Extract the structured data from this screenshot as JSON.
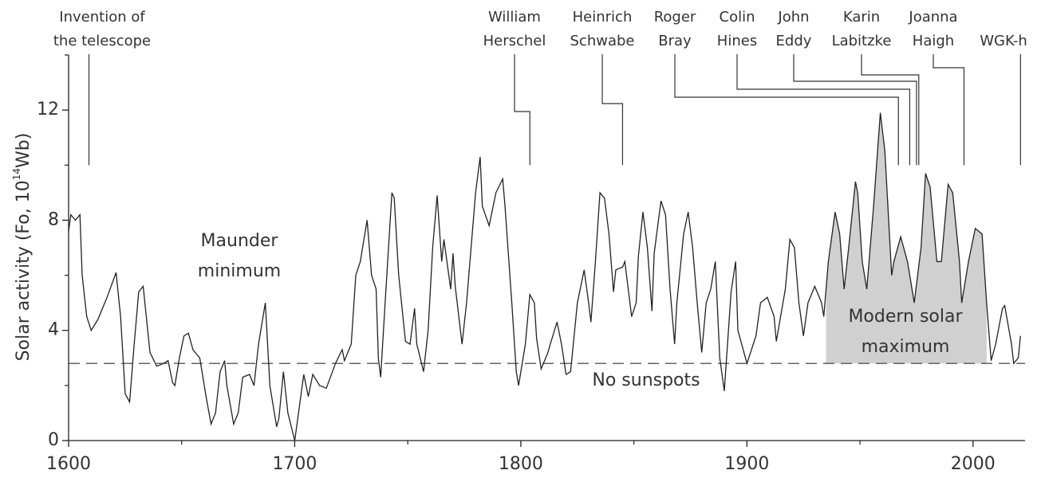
{
  "chart_data": {
    "type": "line",
    "color": "#222222",
    "ylabel": {
      "text": "Solar activity (Fo, 10",
      "sup": "14",
      "unit": "Wb)"
    },
    "xlim": [
      1600,
      2023
    ],
    "xticks": [
      1600,
      1700,
      1800,
      1900,
      2000
    ],
    "x_minor_ticks": [
      1650,
      1750,
      1850,
      1950
    ],
    "ylim": [
      0,
      14
    ],
    "yticks": [
      0,
      4,
      8,
      12
    ],
    "y_minor_ticks": [
      2,
      6,
      10,
      14
    ],
    "x": [
      1600,
      1601,
      1603,
      1605,
      1606,
      1608,
      1610,
      1613,
      1617,
      1621,
      1623,
      1625,
      1627,
      1629,
      1631,
      1633,
      1636,
      1639,
      1642,
      1644,
      1646,
      1647,
      1649,
      1651,
      1653,
      1655,
      1656,
      1658,
      1661,
      1663,
      1665,
      1667,
      1669,
      1670,
      1673,
      1675,
      1677,
      1680,
      1682,
      1684,
      1687,
      1689,
      1692,
      1693,
      1695,
      1697,
      1700,
      1704,
      1706,
      1708,
      1711,
      1714,
      1718,
      1721,
      1722,
      1725,
      1727,
      1729,
      1730,
      1732,
      1734,
      1736,
      1737,
      1738,
      1740,
      1743,
      1744,
      1746,
      1749,
      1751,
      1753,
      1754,
      1757,
      1759,
      1761,
      1763,
      1765,
      1766,
      1769,
      1770,
      1771,
      1774,
      1776,
      1780,
      1782,
      1783,
      1786,
      1789,
      1792,
      1793,
      1796,
      1798,
      1799,
      1802,
      1804,
      1806,
      1807,
      1809,
      1812,
      1813,
      1816,
      1818,
      1820,
      1822,
      1825,
      1828,
      1830,
      1831,
      1833,
      1835,
      1837,
      1839,
      1841,
      1842,
      1845,
      1846,
      1849,
      1851,
      1852,
      1854,
      1856,
      1858,
      1859,
      1862,
      1864,
      1866,
      1868,
      1869,
      1872,
      1874,
      1876,
      1878,
      1880,
      1882,
      1884,
      1886,
      1888,
      1890,
      1893,
      1895,
      1896,
      1900,
      1904,
      1906,
      1909,
      1912,
      1913,
      1917,
      1919,
      1921,
      1923,
      1925,
      1927,
      1930,
      1933,
      1934,
      1936,
      1939,
      1941,
      1943,
      1945,
      1948,
      1949,
      1951,
      1953,
      1956,
      1959,
      1961,
      1964,
      1965,
      1968,
      1971,
      1974,
      1977,
      1979,
      1981,
      1984,
      1986,
      1989,
      1991,
      1994,
      1995,
      1998,
      2001,
      2004,
      2006,
      2008,
      2010,
      2013,
      2014,
      2017,
      2018,
      2020,
      2021
    ],
    "values": [
      7.6,
      8.2,
      8.0,
      8.2,
      6.0,
      4.5,
      4.0,
      4.4,
      5.2,
      6.1,
      4.5,
      1.7,
      1.4,
      3.5,
      5.4,
      5.6,
      3.2,
      2.7,
      2.8,
      2.9,
      2.1,
      2.0,
      3.0,
      3.8,
      3.9,
      3.3,
      3.2,
      3.0,
      1.5,
      0.6,
      1.0,
      2.5,
      2.9,
      2.0,
      0.6,
      1.0,
      2.3,
      2.4,
      2.0,
      3.5,
      5.0,
      2.0,
      0.5,
      0.8,
      2.5,
      1.0,
      0.0,
      2.4,
      1.6,
      2.4,
      2.0,
      1.9,
      2.8,
      3.3,
      2.9,
      3.5,
      6.0,
      6.5,
      7.0,
      8.0,
      6.0,
      5.5,
      3.0,
      2.3,
      5.0,
      9.0,
      8.8,
      6.0,
      3.6,
      3.5,
      4.8,
      3.5,
      2.5,
      4.0,
      7.0,
      8.9,
      6.5,
      7.3,
      5.5,
      6.8,
      5.6,
      3.5,
      5.0,
      9.0,
      10.3,
      8.5,
      7.8,
      9.0,
      9.5,
      8.5,
      5.0,
      2.5,
      2.0,
      3.5,
      5.3,
      5.0,
      3.7,
      2.6,
      3.2,
      3.5,
      4.3,
      3.5,
      2.4,
      2.5,
      5.0,
      6.2,
      5.0,
      4.3,
      6.5,
      9.0,
      8.8,
      7.5,
      5.4,
      6.2,
      6.3,
      6.5,
      4.5,
      5.0,
      6.7,
      8.3,
      7.0,
      4.7,
      6.8,
      8.7,
      8.2,
      5.5,
      3.5,
      5.0,
      7.5,
      8.3,
      7.0,
      5.0,
      3.2,
      5.0,
      5.5,
      6.5,
      3.0,
      1.8,
      5.4,
      6.5,
      4.0,
      2.8,
      3.8,
      5.0,
      5.2,
      4.5,
      3.6,
      5.5,
      7.3,
      7.0,
      5.0,
      3.8,
      5.0,
      5.6,
      5.0,
      4.5,
      6.5,
      8.3,
      7.5,
      5.5,
      7.0,
      9.4,
      9.0,
      6.5,
      5.5,
      8.5,
      11.9,
      10.5,
      6.0,
      6.5,
      7.4,
      6.5,
      5.0,
      7.0,
      9.7,
      9.2,
      6.5,
      6.5,
      9.3,
      9.0,
      6.5,
      5.0,
      6.5,
      7.7,
      7.5,
      5.0,
      2.9,
      3.5,
      4.8,
      4.9,
      3.5,
      2.8,
      3.0,
      3.8
    ],
    "no_sunspot_level": {
      "value": 2.8,
      "label": "No sunspots"
    },
    "shaded": {
      "x_range": [
        1935,
        2006
      ],
      "base": 2.8,
      "label": [
        "Modern solar",
        "maximum"
      ]
    },
    "maunder": {
      "label": [
        "Maunder",
        "minimum"
      ]
    },
    "events": [
      {
        "label": [
          "Invention of",
          "the telescope"
        ],
        "year": 1609
      },
      {
        "label": [
          "William",
          "Herschel"
        ],
        "year": 1804
      },
      {
        "label": [
          "Heinrich",
          "Schwabe"
        ],
        "year": 1845
      },
      {
        "label": [
          "Roger",
          "Bray"
        ],
        "year": 1967
      },
      {
        "label": [
          "Colin",
          "Hines"
        ],
        "year": 1972
      },
      {
        "label": [
          "John",
          "Eddy"
        ],
        "year": 1975
      },
      {
        "label": [
          "Karin",
          "Labitzke"
        ],
        "year": 1976
      },
      {
        "label": [
          "Joanna",
          "Haigh"
        ],
        "year": 1996
      },
      {
        "label": [
          "WGK-h"
        ],
        "year": 2021
      }
    ]
  }
}
